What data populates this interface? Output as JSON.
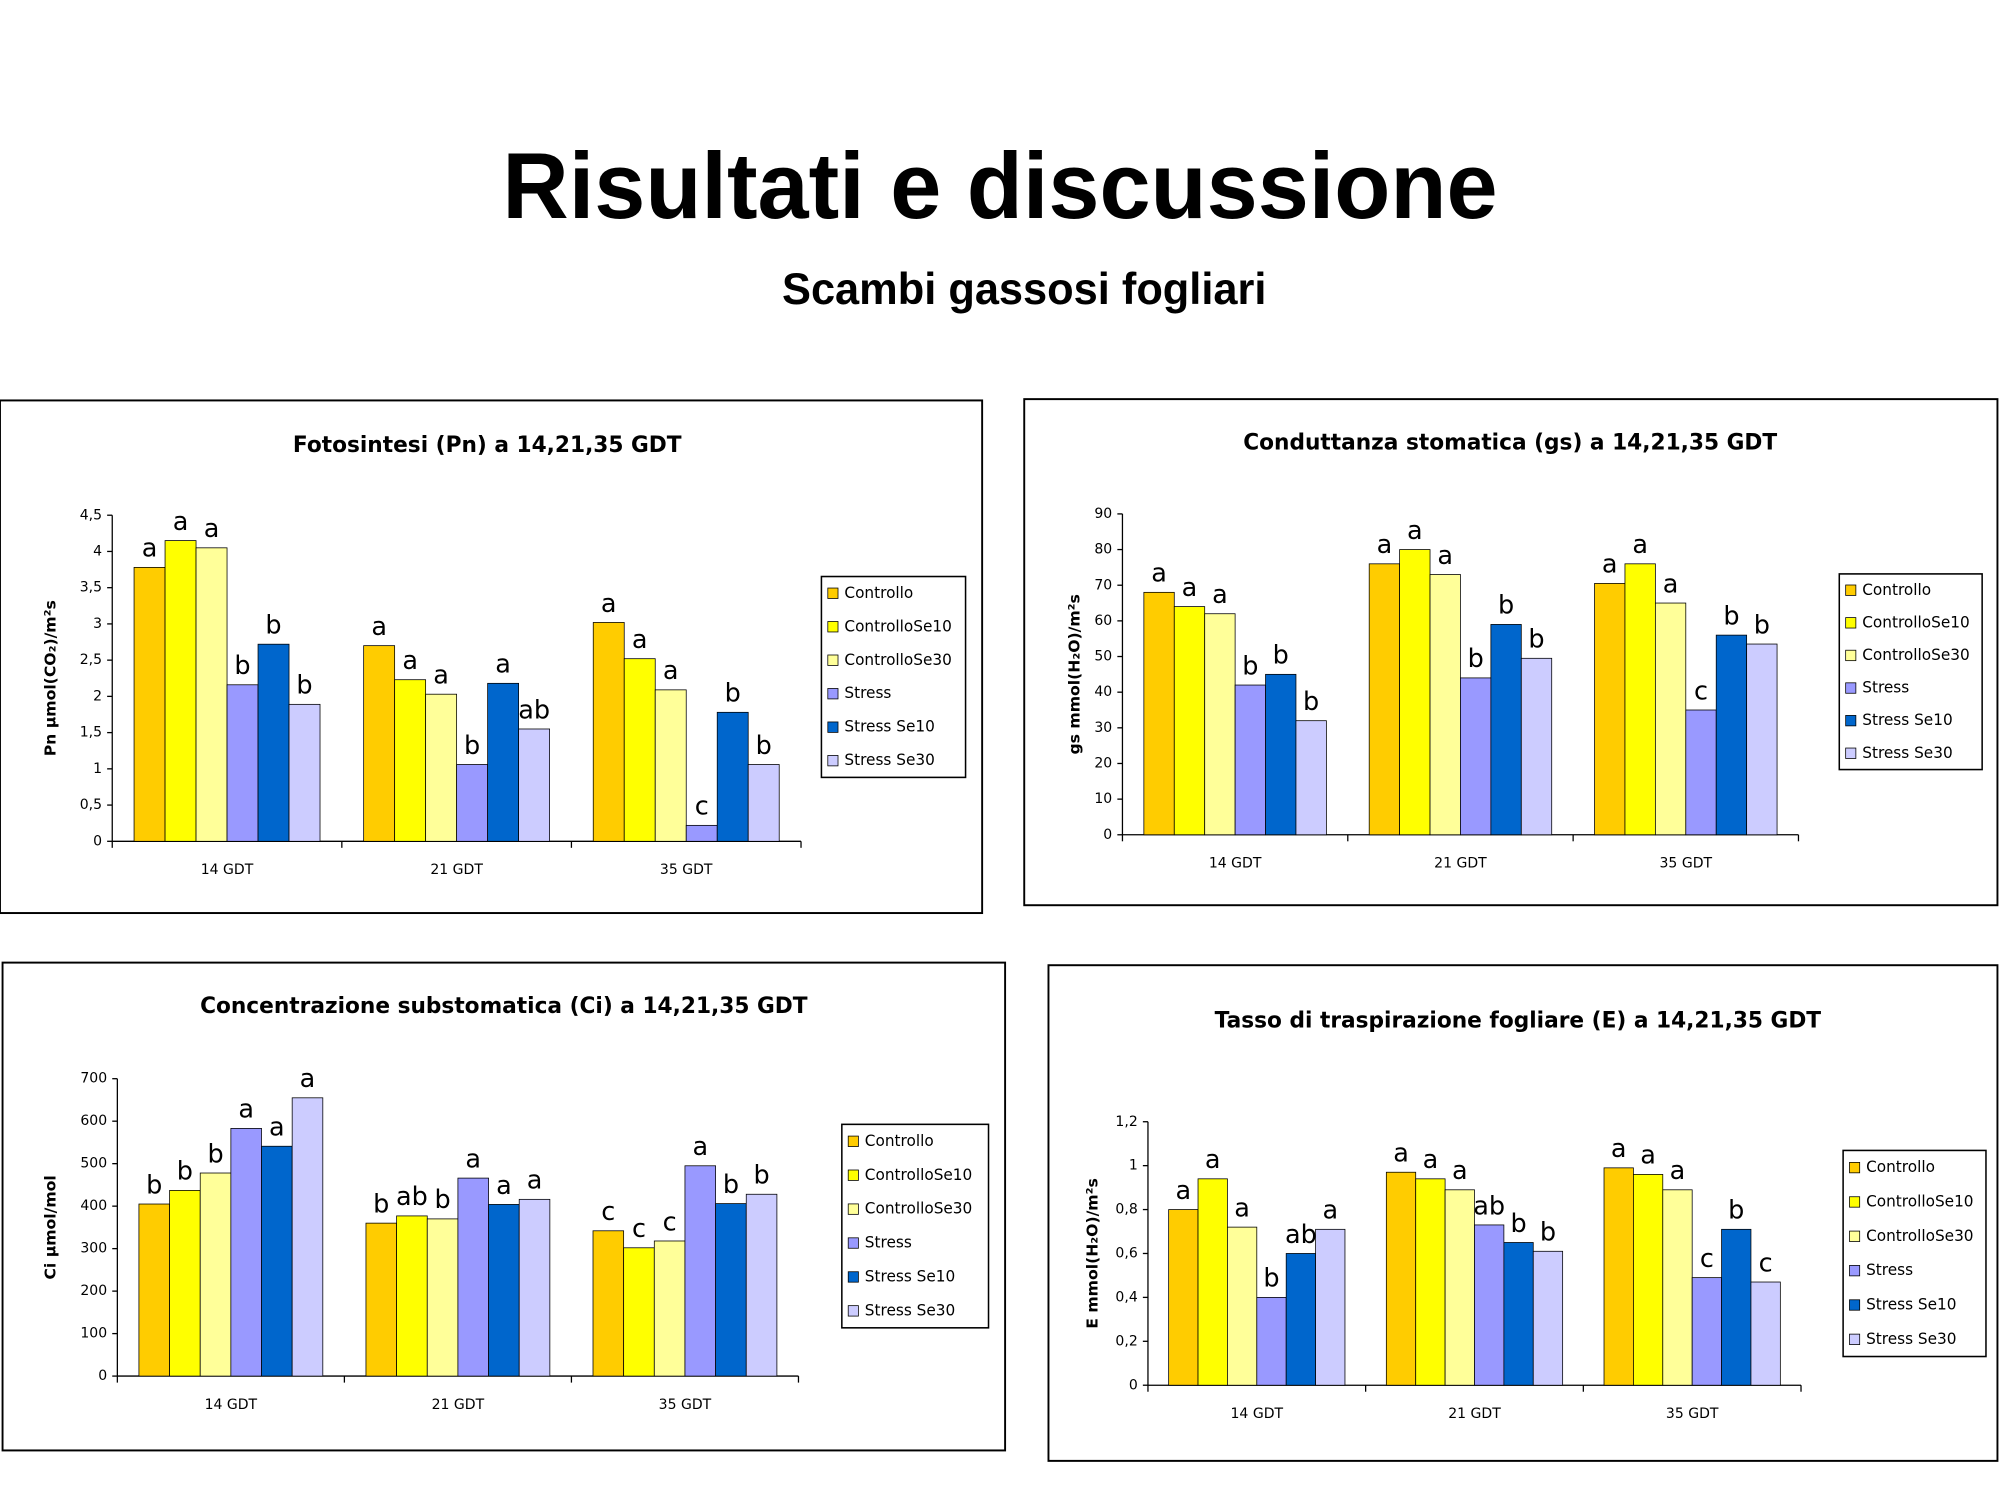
{
  "header": {
    "title": "Risultati e discussione",
    "subtitle": "Scambi gassosi fogliari"
  },
  "chart_data": [
    {
      "type": "bar",
      "title": "Fotosintesi (Pn) a 14,21,35 GDT",
      "y_label": "Pn µmol(CO₂)/m²s",
      "categories": [
        "14 GDT",
        "21 GDT",
        "35 GDT"
      ],
      "ylim": [
        0,
        4.5
      ],
      "yticks": [
        0,
        {
          "value": 0.5,
          "label": "0,5"
        },
        1,
        {
          "value": 1.5,
          "label": "1,5"
        },
        2,
        {
          "value": 2.5,
          "label": "2,5"
        },
        3,
        {
          "value": 3.5,
          "label": "3,5"
        },
        4,
        {
          "value": 4.5,
          "label": "4,5"
        }
      ],
      "series": [
        {
          "name": "Controllo",
          "color": "#ffcc00",
          "values": [
            3.78,
            2.7,
            3.02
          ],
          "letters": [
            "a",
            "a",
            "a"
          ]
        },
        {
          "name": "ControlloSe10",
          "color": "#ffff00",
          "values": [
            4.15,
            2.23,
            2.52
          ],
          "letters": [
            "a",
            "a",
            "a"
          ]
        },
        {
          "name": "ControlloSe30",
          "color": "#ffff99",
          "values": [
            4.05,
            2.03,
            2.09
          ],
          "letters": [
            "a",
            "a",
            "a"
          ]
        },
        {
          "name": "Stress",
          "color": "#9999ff",
          "values": [
            2.16,
            1.06,
            0.22
          ],
          "letters": [
            "b",
            "b",
            "c"
          ]
        },
        {
          "name": "Stress Se10",
          "color": "#0066cc",
          "values": [
            2.72,
            2.18,
            1.78
          ],
          "letters": [
            "b",
            "a",
            "b"
          ]
        },
        {
          "name": "Stress Se30",
          "color": "#ccccff",
          "values": [
            1.89,
            1.55,
            1.06
          ],
          "letters": [
            "b",
            "ab",
            "b"
          ]
        }
      ]
    },
    {
      "type": "bar",
      "title": "Conduttanza stomatica (gs) a 14,21,35 GDT",
      "y_label": "gs mmol(H₂O)/m²s",
      "categories": [
        "14 GDT",
        "21 GDT",
        "35 GDT"
      ],
      "ylim": [
        0,
        90
      ],
      "yticks": [
        0,
        10,
        20,
        30,
        40,
        50,
        60,
        70,
        80,
        90
      ],
      "series": [
        {
          "name": "Controllo",
          "color": "#ffcc00",
          "values": [
            68,
            76,
            70.5
          ],
          "letters": [
            "a",
            "a",
            "a"
          ]
        },
        {
          "name": "ControlloSe10",
          "color": "#ffff00",
          "values": [
            64,
            80,
            76
          ],
          "letters": [
            "a",
            "a",
            "a"
          ]
        },
        {
          "name": "ControlloSe30",
          "color": "#ffff99",
          "values": [
            62,
            73,
            65
          ],
          "letters": [
            "a",
            "a",
            "a"
          ]
        },
        {
          "name": "Stress",
          "color": "#9999ff",
          "values": [
            42,
            44,
            35
          ],
          "letters": [
            "b",
            "b",
            "c"
          ]
        },
        {
          "name": "Stress Se10",
          "color": "#0066cc",
          "values": [
            45,
            59,
            56
          ],
          "letters": [
            "b",
            "b",
            "b"
          ]
        },
        {
          "name": "Stress Se30",
          "color": "#ccccff",
          "values": [
            32,
            49.5,
            53.5
          ],
          "letters": [
            "b",
            "b",
            "b"
          ]
        }
      ]
    },
    {
      "type": "bar",
      "title": "Concentrazione substomatica (Ci) a 14,21,35 GDT",
      "y_label": "Ci µmol/mol",
      "categories": [
        "14 GDT",
        "21 GDT",
        "35 GDT"
      ],
      "ylim": [
        0,
        700
      ],
      "yticks": [
        0,
        100,
        200,
        300,
        400,
        500,
        600,
        700
      ],
      "series": [
        {
          "name": "Controllo",
          "color": "#ffcc00",
          "values": [
            405,
            360,
            342
          ],
          "letters": [
            "b",
            "b",
            "c"
          ]
        },
        {
          "name": "ControlloSe10",
          "color": "#ffff00",
          "values": [
            437,
            377,
            302
          ],
          "letters": [
            "b",
            "ab",
            "c"
          ]
        },
        {
          "name": "ControlloSe30",
          "color": "#ffff99",
          "values": [
            478,
            370,
            318
          ],
          "letters": [
            "b",
            "b",
            "c"
          ]
        },
        {
          "name": "Stress",
          "color": "#9999ff",
          "values": [
            583,
            466,
            495
          ],
          "letters": [
            "a",
            "a",
            "a"
          ]
        },
        {
          "name": "Stress Se10",
          "color": "#0066cc",
          "values": [
            541,
            404,
            406
          ],
          "letters": [
            "a",
            "a",
            "b"
          ]
        },
        {
          "name": "Stress Se30",
          "color": "#ccccff",
          "values": [
            655,
            416,
            428
          ],
          "letters": [
            "a",
            "a",
            "b"
          ]
        }
      ]
    },
    {
      "type": "bar",
      "title": "Tasso di traspirazione fogliare (E) a 14,21,35 GDT",
      "y_label": "E mmol(H₂O)/m²s",
      "categories": [
        "14 GDT",
        "21 GDT",
        "35 GDT"
      ],
      "ylim": [
        0,
        1.2
      ],
      "yticks": [
        0,
        {
          "value": 0.2,
          "label": "0,2"
        },
        {
          "value": 0.4,
          "label": "0,4"
        },
        {
          "value": 0.6,
          "label": "0,6"
        },
        {
          "value": 0.8,
          "label": "0,8"
        },
        1,
        {
          "value": 1.2,
          "label": "1,2"
        }
      ],
      "series": [
        {
          "name": "Controllo",
          "color": "#ffcc00",
          "values": [
            0.8,
            0.97,
            0.99
          ],
          "letters": [
            "a",
            "a",
            "a"
          ]
        },
        {
          "name": "ControlloSe10",
          "color": "#ffff00",
          "values": [
            0.94,
            0.94,
            0.96
          ],
          "letters": [
            "a",
            "a",
            "a"
          ]
        },
        {
          "name": "ControlloSe30",
          "color": "#ffff99",
          "values": [
            0.72,
            0.89,
            0.89
          ],
          "letters": [
            "a",
            "a",
            "a"
          ]
        },
        {
          "name": "Stress",
          "color": "#9999ff",
          "values": [
            0.4,
            0.73,
            0.49
          ],
          "letters": [
            "b",
            "ab",
            "c"
          ]
        },
        {
          "name": "Stress Se10",
          "color": "#0066cc",
          "values": [
            0.6,
            0.65,
            0.71
          ],
          "letters": [
            "ab",
            "b",
            "b"
          ]
        },
        {
          "name": "Stress Se30",
          "color": "#ccccff",
          "values": [
            0.71,
            0.61,
            0.47
          ],
          "letters": [
            "a",
            "b",
            "c"
          ]
        }
      ]
    }
  ]
}
